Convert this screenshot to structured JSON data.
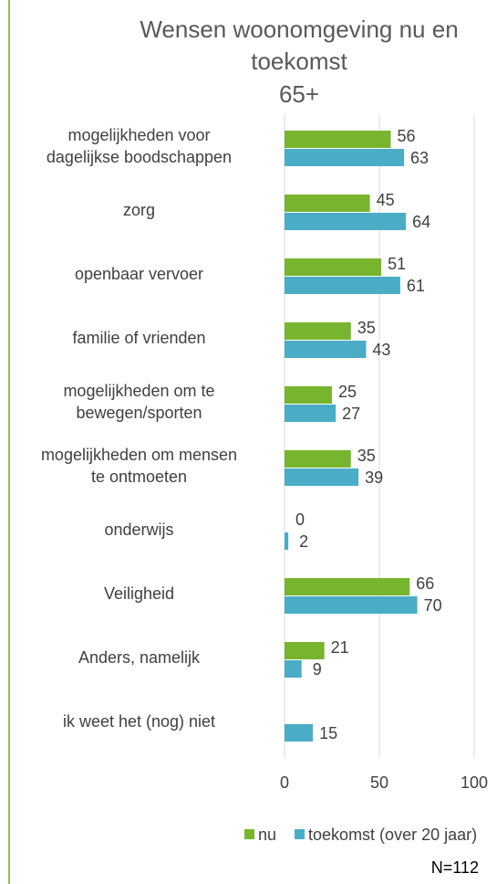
{
  "chart_data": {
    "type": "barh",
    "title": "Wensen woonomgeving nu en toekomst",
    "subtitle": "65+",
    "categories": [
      "mogelijkheden voor\ndagelijkse boodschappen",
      "zorg",
      "openbaar vervoer",
      "familie of vrienden",
      "mogelijkheden om te\nbewegen/sporten",
      "mogelijkheden om mensen\nte ontmoeten",
      "onderwijs",
      "Veiligheid",
      "Anders, namelijk",
      "ik weet het (nog) niet"
    ],
    "series": [
      {
        "name": "nu",
        "color": "#78b52f",
        "values": [
          56,
          45,
          51,
          35,
          25,
          35,
          0,
          66,
          21,
          null
        ]
      },
      {
        "name": "toekomst (over 20 jaar)",
        "color": "#4bacc6",
        "values": [
          63,
          64,
          61,
          43,
          27,
          39,
          2,
          70,
          9,
          15
        ]
      }
    ],
    "xlim": [
      0,
      100
    ],
    "xticks": [
      0,
      50,
      100
    ],
    "grid": true,
    "legend": "bottom",
    "annotation": "N=112"
  }
}
